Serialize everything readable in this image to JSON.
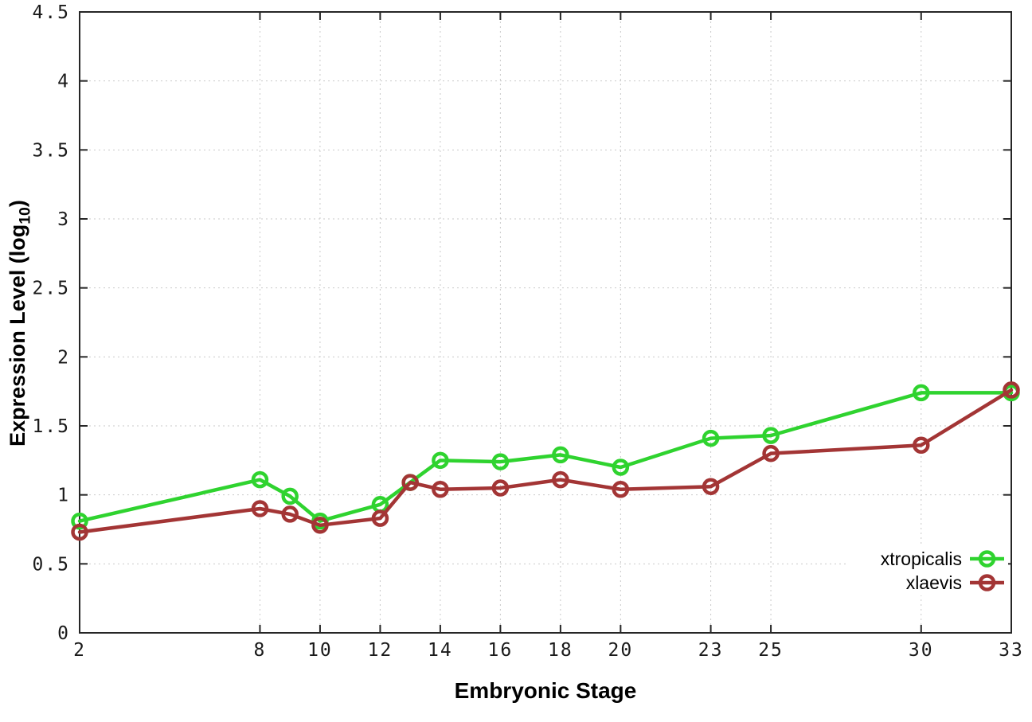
{
  "chart_data": {
    "type": "line",
    "title": "",
    "xlabel": "Embryonic Stage",
    "ylabel_main": "Expression Level (log",
    "ylabel_sub": "10",
    "ylabel_close": ")",
    "xlim": [
      2,
      33
    ],
    "ylim": [
      0,
      4.5
    ],
    "grid": true,
    "legend_position": "bottom-right",
    "x": [
      2,
      8,
      9,
      10,
      12,
      13,
      14,
      16,
      18,
      20,
      23,
      25,
      30,
      33
    ],
    "x_ticks": [
      2,
      8,
      10,
      12,
      14,
      16,
      18,
      20,
      23,
      25,
      30,
      33
    ],
    "x_tick_labels": [
      "2",
      "8",
      "10",
      "12",
      "14",
      "16",
      "18",
      "20",
      "23",
      "25",
      "30",
      "33"
    ],
    "y_ticks": [
      0,
      0.5,
      1,
      1.5,
      2,
      2.5,
      3,
      3.5,
      4,
      4.5
    ],
    "y_tick_labels": [
      "0",
      "0.5",
      "1",
      "1.5",
      "2",
      "2.5",
      "3",
      "3.5",
      "4",
      "4.5"
    ],
    "series": [
      {
        "name": "xtropicalis",
        "color": "#2fd32f",
        "values": [
          0.81,
          1.11,
          0.99,
          0.81,
          0.93,
          1.09,
          1.25,
          1.24,
          1.29,
          1.2,
          1.41,
          1.43,
          1.74,
          1.74
        ]
      },
      {
        "name": "xlaevis",
        "color": "#a33535",
        "values": [
          0.73,
          0.9,
          0.86,
          0.78,
          0.83,
          1.09,
          1.04,
          1.05,
          1.11,
          1.04,
          1.06,
          1.3,
          1.36,
          1.76
        ]
      }
    ]
  },
  "colors": {
    "background": "#ffffff",
    "grid": "#c9c9c9",
    "axis": "#262626",
    "tick_text": "#1a1a1a",
    "legend_text": "#000000"
  }
}
